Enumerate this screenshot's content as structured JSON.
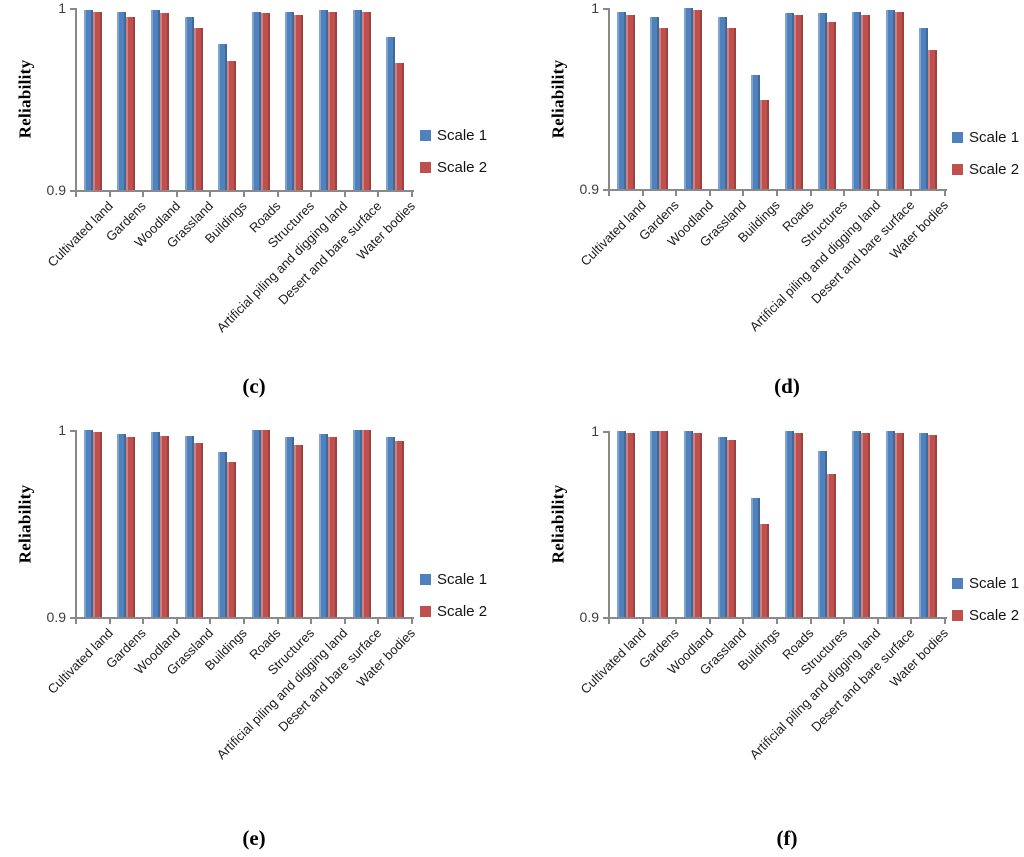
{
  "figure": {
    "description": "Four grouped bar charts comparing classification reliability at two scales",
    "panel_labels": [
      "(c)",
      "(d)",
      "(e)",
      "(f)"
    ]
  },
  "colors": {
    "scale1_blue": "#4f81bd",
    "scale2_red": "#c0504d",
    "axis_gray": "#898989",
    "background": "#ffffff"
  },
  "chart_data": [
    {
      "type": "bar",
      "panel_label": "(c)",
      "ylabel": "Reliability",
      "xlabel": "",
      "ylim": [
        0.9,
        1.0
      ],
      "yticks": [
        {
          "value": 1.0,
          "label": "1"
        },
        {
          "value": 0.9,
          "label": "0.9"
        }
      ],
      "grid": false,
      "legend_position": "right",
      "categories": [
        "Cultivated land",
        "Gardens",
        "Woodland",
        "Grassland",
        "Buildings",
        "Roads",
        "Structures",
        "Artificial piling and digging land",
        "Desert and bare surface",
        "Water bodies"
      ],
      "series": [
        {
          "name": "Scale 1",
          "color": "#4f81bd",
          "values": [
            0.999,
            0.998,
            0.999,
            0.995,
            0.98,
            0.998,
            0.998,
            0.999,
            0.999,
            0.984
          ]
        },
        {
          "name": "Scale 2",
          "color": "#c0504d",
          "values": [
            0.998,
            0.995,
            0.997,
            0.989,
            0.971,
            0.997,
            0.996,
            0.998,
            0.998,
            0.97
          ]
        }
      ]
    },
    {
      "type": "bar",
      "panel_label": "(d)",
      "ylabel": "Reliability",
      "xlabel": "",
      "ylim": [
        0.9,
        1.0
      ],
      "yticks": [
        {
          "value": 1.0,
          "label": "1"
        },
        {
          "value": 0.9,
          "label": "0.9"
        }
      ],
      "grid": false,
      "legend_position": "right",
      "categories": [
        "Cultivated land",
        "Gardens",
        "Woodland",
        "Grassland",
        "Buildings",
        "Roads",
        "Structures",
        "Artificial piling and digging land",
        "Desert and bare surface",
        "Water bodies"
      ],
      "series": [
        {
          "name": "Scale 1",
          "color": "#4f81bd",
          "values": [
            0.998,
            0.995,
            1.0,
            0.995,
            0.963,
            0.997,
            0.997,
            0.998,
            0.999,
            0.989
          ]
        },
        {
          "name": "Scale 2",
          "color": "#c0504d",
          "values": [
            0.996,
            0.989,
            0.999,
            0.989,
            0.949,
            0.996,
            0.992,
            0.996,
            0.998,
            0.977
          ]
        }
      ]
    },
    {
      "type": "bar",
      "panel_label": "(e)",
      "ylabel": "Reliability",
      "xlabel": "",
      "ylim": [
        0.9,
        1.0
      ],
      "yticks": [
        {
          "value": 1.0,
          "label": "1"
        },
        {
          "value": 0.9,
          "label": "0.9"
        }
      ],
      "grid": false,
      "legend_position": "right",
      "categories": [
        "Cultivated land",
        "Gardens",
        "Woodland",
        "Grassland",
        "Buildings",
        "Roads",
        "Structures",
        "Artificial piling and digging land",
        "Desert and bare surface",
        "Water bodies"
      ],
      "series": [
        {
          "name": "Scale 1",
          "color": "#4f81bd",
          "values": [
            1.0,
            0.998,
            0.999,
            0.997,
            0.988,
            1.0,
            0.996,
            0.998,
            1.0,
            0.996
          ]
        },
        {
          "name": "Scale 2",
          "color": "#c0504d",
          "values": [
            0.999,
            0.996,
            0.997,
            0.993,
            0.983,
            1.0,
            0.992,
            0.996,
            1.0,
            0.994
          ]
        }
      ]
    },
    {
      "type": "bar",
      "panel_label": "(f)",
      "ylabel": "Reliability",
      "xlabel": "",
      "ylim": [
        0.9,
        1.0
      ],
      "yticks": [
        {
          "value": 1.0,
          "label": "1"
        },
        {
          "value": 0.9,
          "label": "0.9"
        }
      ],
      "grid": false,
      "legend_position": "right",
      "categories": [
        "Cultivated land",
        "Gardens",
        "Woodland",
        "Grassland",
        "Buildings",
        "Roads",
        "Structures",
        "Artificial piling and digging land",
        "Desert and bare surface",
        "Water bodies"
      ],
      "series": [
        {
          "name": "Scale 1",
          "color": "#4f81bd",
          "values": [
            1.0,
            1.0,
            1.0,
            0.997,
            0.964,
            1.0,
            0.989,
            1.0,
            1.0,
            0.999
          ]
        },
        {
          "name": "Scale 2",
          "color": "#c0504d",
          "values": [
            0.999,
            1.0,
            0.999,
            0.995,
            0.95,
            0.999,
            0.977,
            0.999,
            0.999,
            0.998
          ]
        }
      ]
    }
  ]
}
